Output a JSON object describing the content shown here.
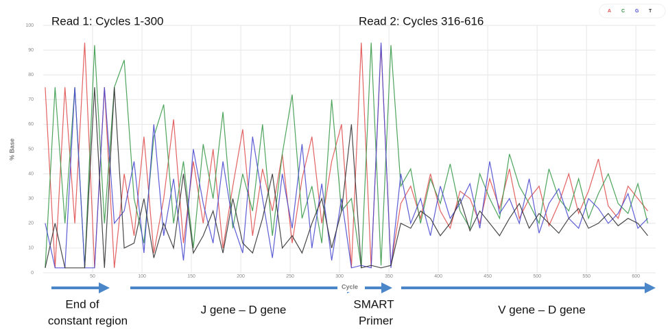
{
  "chart_data": {
    "type": "line",
    "x_label": "Cycle",
    "y_label": "% Base",
    "x": [
      2,
      12,
      22,
      32,
      42,
      52,
      62,
      72,
      82,
      92,
      102,
      112,
      122,
      132,
      142,
      152,
      162,
      172,
      182,
      192,
      202,
      212,
      222,
      232,
      242,
      252,
      262,
      272,
      282,
      292,
      302,
      312,
      322,
      332,
      342,
      352,
      362,
      372,
      382,
      392,
      402,
      412,
      422,
      432,
      442,
      452,
      462,
      472,
      482,
      492,
      502,
      512,
      522,
      532,
      542,
      552,
      562,
      572,
      582,
      592,
      602,
      612
    ],
    "series": [
      {
        "name": "A",
        "color": "#e05050",
        "values": [
          75,
          2,
          75,
          20,
          93,
          2,
          75,
          2,
          40,
          15,
          55,
          8,
          30,
          62,
          12,
          45,
          20,
          50,
          10,
          35,
          58,
          15,
          42,
          25,
          48,
          12,
          38,
          55,
          20,
          45,
          60,
          2,
          93,
          2,
          92,
          3,
          28,
          35,
          22,
          40,
          25,
          18,
          33,
          30,
          20,
          38,
          26,
          42,
          22,
          30,
          35,
          19,
          28,
          40,
          24,
          33,
          46,
          27,
          22,
          35,
          30,
          25
        ]
      },
      {
        "name": "C",
        "color": "#3a9a4a",
        "values": [
          2,
          75,
          20,
          75,
          2,
          92,
          20,
          75,
          86,
          30,
          12,
          55,
          68,
          20,
          45,
          10,
          52,
          30,
          65,
          18,
          40,
          25,
          60,
          15,
          48,
          72,
          22,
          35,
          12,
          70,
          25,
          30,
          2,
          93,
          3,
          92,
          35,
          42,
          20,
          38,
          28,
          44,
          25,
          18,
          40,
          30,
          22,
          48,
          35,
          28,
          20,
          42,
          30,
          25,
          38,
          22,
          32,
          40,
          28,
          24,
          36,
          20
        ]
      },
      {
        "name": "G",
        "color": "#4a4ad0",
        "values": [
          20,
          2,
          2,
          75,
          2,
          2,
          75,
          20,
          25,
          45,
          8,
          60,
          15,
          38,
          5,
          50,
          28,
          12,
          45,
          20,
          8,
          55,
          30,
          6,
          40,
          18,
          52,
          10,
          36,
          5,
          30,
          2,
          3,
          2,
          93,
          2,
          40,
          20,
          30,
          15,
          35,
          22,
          28,
          36,
          18,
          45,
          24,
          30,
          20,
          38,
          16,
          28,
          34,
          22,
          18,
          30,
          26,
          20,
          24,
          32,
          18,
          22
        ]
      },
      {
        "name": "T",
        "color": "#333333",
        "values": [
          2,
          20,
          2,
          2,
          2,
          75,
          2,
          75,
          10,
          12,
          30,
          6,
          20,
          10,
          40,
          8,
          15,
          25,
          8,
          30,
          12,
          8,
          22,
          40,
          10,
          15,
          8,
          20,
          30,
          10,
          25,
          60,
          2,
          3,
          2,
          3,
          20,
          18,
          25,
          22,
          15,
          20,
          30,
          17,
          25,
          20,
          15,
          22,
          28,
          18,
          24,
          20,
          16,
          22,
          26,
          18,
          20,
          24,
          19,
          22,
          20,
          15
        ]
      }
    ],
    "xlim": [
      0,
      620
    ],
    "xticks": [
      50,
      100,
      150,
      200,
      250,
      300,
      350,
      400,
      450,
      500,
      550,
      600
    ],
    "ylim": [
      0,
      100
    ],
    "yticks": [
      0,
      10,
      20,
      30,
      40,
      50,
      60,
      70,
      80,
      90,
      100
    ],
    "grid": true,
    "legend": "upper right",
    "annotations": [
      "Read 1: Cycles 1-300",
      "Read 2: Cycles 316-616",
      "End of",
      "constant region",
      "J gene – D gene",
      "SMART",
      "Primer",
      "V gene – D gene"
    ]
  }
}
